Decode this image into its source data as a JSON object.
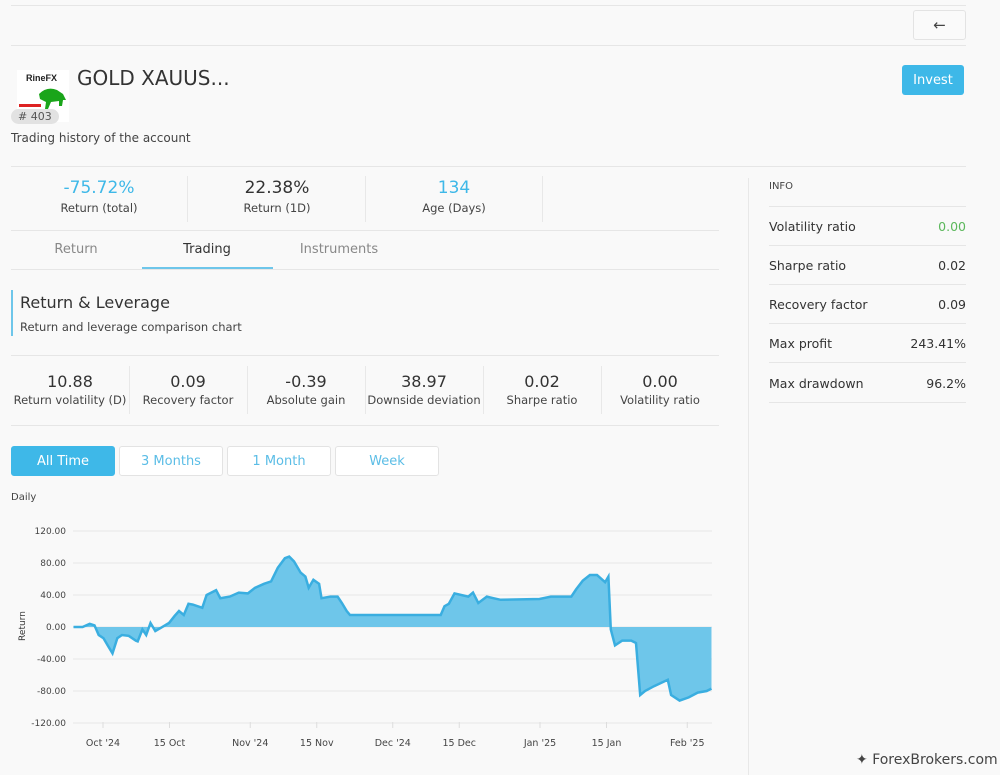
{
  "header": {
    "back_icon": "arrow-left-icon",
    "logo_text": "RineFX",
    "title": "GOLD XAUUS...",
    "badge": "# 403",
    "subtitle": "Trading history of the account",
    "invest_label": "Invest"
  },
  "stats": [
    {
      "value": "-75.72%",
      "label": "Return (total)"
    },
    {
      "value": "22.38%",
      "label": "Return (1D)"
    },
    {
      "value": "134",
      "label": "Age (Days)"
    }
  ],
  "tabs": [
    {
      "label": "Return"
    },
    {
      "label": "Trading"
    },
    {
      "label": "Instruments"
    }
  ],
  "section": {
    "title": "Return & Leverage",
    "subtitle": "Return and leverage comparison chart"
  },
  "metrics": [
    {
      "value": "10.88",
      "label": "Return volatility (D)"
    },
    {
      "value": "0.09",
      "label": "Recovery factor"
    },
    {
      "value": "-0.39",
      "label": "Absolute gain"
    },
    {
      "value": "38.97",
      "label": "Downside deviation"
    },
    {
      "value": "0.02",
      "label": "Sharpe ratio"
    },
    {
      "value": "0.00",
      "label": "Volatility ratio"
    }
  ],
  "ranges": [
    {
      "label": "All Time"
    },
    {
      "label": "3 Months"
    },
    {
      "label": "1 Month"
    },
    {
      "label": "Week"
    }
  ],
  "info": {
    "heading": "INFO",
    "rows": [
      {
        "label": "Volatility ratio",
        "value": "0.00"
      },
      {
        "label": "Sharpe ratio",
        "value": "0.02"
      },
      {
        "label": "Recovery factor",
        "value": "0.09"
      },
      {
        "label": "Max profit",
        "value": "243.41%"
      },
      {
        "label": "Max drawdown",
        "value": "96.2%"
      }
    ]
  },
  "watermark": "ForexBrokers.com",
  "colors": {
    "accent": "#3eb8e8",
    "area": "#6ec6ea",
    "line": "#3aaee0",
    "positive": "#5cb85c"
  },
  "chart_data": {
    "type": "area",
    "title": "Daily",
    "xlabel": "",
    "ylabel": "Return",
    "ylim": [
      -120,
      120
    ],
    "yticks": [
      "120.00",
      "80.00",
      "40.00",
      "0.00",
      "-40.00",
      "-80.00",
      "-120.00"
    ],
    "xtick_labels": [
      {
        "day": 0,
        "label": "Oct '24"
      },
      {
        "day": 14,
        "label": "15 Oct"
      },
      {
        "day": 31,
        "label": "Nov '24"
      },
      {
        "day": 45,
        "label": "15 Nov"
      },
      {
        "day": 61,
        "label": "Dec '24"
      },
      {
        "day": 75,
        "label": "15 Dec"
      },
      {
        "day": 92,
        "label": "Jan '25"
      },
      {
        "day": 106,
        "label": "15 Jan"
      },
      {
        "day": 123,
        "label": "Feb '25"
      }
    ],
    "x_unit": "days since 1 Oct 2024",
    "points": [
      [
        -6.2,
        0
      ],
      [
        -4.3,
        0
      ],
      [
        -2.8,
        4
      ],
      [
        -1.8,
        2
      ],
      [
        -0.9,
        -10
      ],
      [
        0.1,
        -14
      ],
      [
        1.1,
        -24
      ],
      [
        2,
        -33
      ],
      [
        3,
        -14
      ],
      [
        4,
        -10
      ],
      [
        5.4,
        -11
      ],
      [
        6.9,
        -17
      ],
      [
        7.3,
        -18
      ],
      [
        8.3,
        -3
      ],
      [
        9.1,
        -10
      ],
      [
        10,
        5
      ],
      [
        11,
        -5
      ],
      [
        12.2,
        -1
      ],
      [
        13.9,
        5
      ],
      [
        15.1,
        14
      ],
      [
        16,
        20
      ],
      [
        17,
        15
      ],
      [
        18,
        29
      ],
      [
        18.9,
        28
      ],
      [
        20.9,
        24
      ],
      [
        21.8,
        40
      ],
      [
        23.8,
        46
      ],
      [
        24.7,
        36
      ],
      [
        26.7,
        38
      ],
      [
        28.6,
        43
      ],
      [
        30.5,
        42
      ],
      [
        32,
        49
      ],
      [
        33.9,
        54
      ],
      [
        35.4,
        57
      ],
      [
        36.8,
        74
      ],
      [
        38.3,
        86
      ],
      [
        39.2,
        88
      ],
      [
        40.2,
        82
      ],
      [
        41.6,
        68
      ],
      [
        42.6,
        63
      ],
      [
        43.3,
        49
      ],
      [
        44.3,
        59
      ],
      [
        45.5,
        54
      ],
      [
        46,
        36
      ],
      [
        47.9,
        38
      ],
      [
        49.4,
        38
      ],
      [
        50.3,
        30
      ],
      [
        51.3,
        20
      ],
      [
        52,
        15
      ],
      [
        55.7,
        15
      ],
      [
        71.1,
        15
      ],
      [
        71.9,
        26
      ],
      [
        72.8,
        29
      ],
      [
        74,
        42
      ],
      [
        76.9,
        38
      ],
      [
        77.9,
        43
      ],
      [
        79,
        30
      ],
      [
        80.8,
        38
      ],
      [
        82.2,
        36
      ],
      [
        83.7,
        34
      ],
      [
        91.9,
        35
      ],
      [
        94.3,
        38
      ],
      [
        98.6,
        38
      ],
      [
        99.6,
        47
      ],
      [
        101,
        58
      ],
      [
        102.5,
        65
      ],
      [
        104,
        65
      ],
      [
        105.7,
        56
      ],
      [
        106.4,
        63
      ],
      [
        106.9,
        -3
      ],
      [
        107.8,
        -23
      ],
      [
        109.3,
        -17
      ],
      [
        111.2,
        -17
      ],
      [
        112.2,
        -20
      ],
      [
        113.1,
        -85
      ],
      [
        114.1,
        -80
      ],
      [
        116,
        -74
      ],
      [
        118.9,
        -66
      ],
      [
        119.6,
        -85
      ],
      [
        121.4,
        -92
      ],
      [
        123.3,
        -88
      ],
      [
        125.2,
        -82
      ],
      [
        127.1,
        -80
      ],
      [
        128.1,
        -77
      ]
    ]
  }
}
